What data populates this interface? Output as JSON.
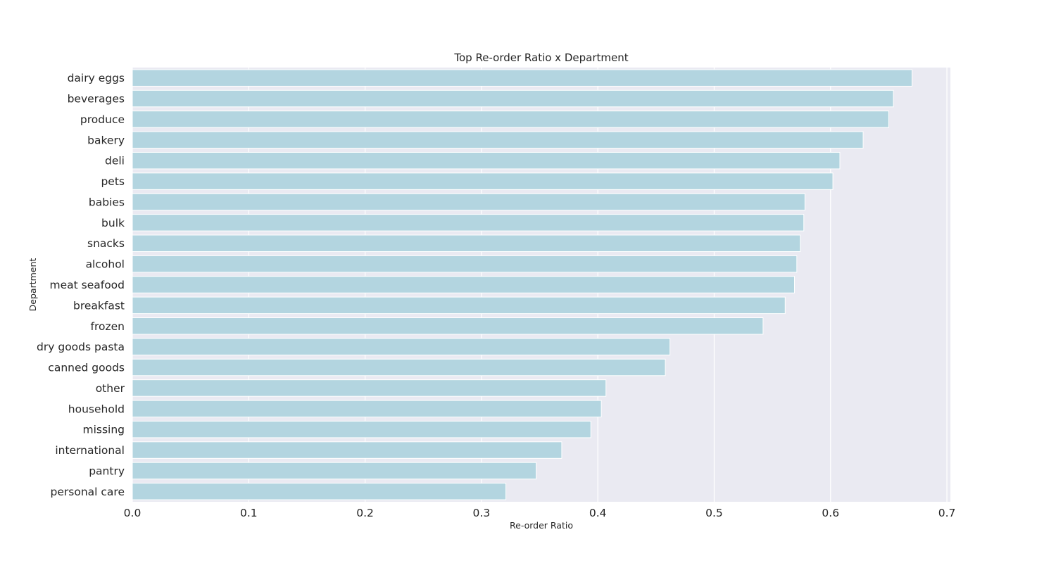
{
  "chart_data": {
    "type": "bar",
    "orientation": "horizontal",
    "title": "Top Re-order Ratio x Department",
    "xlabel": "Re-order Ratio",
    "ylabel": "Department",
    "xlim": [
      0,
      0.703
    ],
    "xticks": [
      0.0,
      0.1,
      0.2,
      0.3,
      0.4,
      0.5,
      0.6,
      0.7
    ],
    "xtick_labels": [
      "0.0",
      "0.1",
      "0.2",
      "0.3",
      "0.4",
      "0.5",
      "0.6",
      "0.7"
    ],
    "grid": true,
    "categories": [
      "dairy eggs",
      "beverages",
      "produce",
      "bakery",
      "deli",
      "pets",
      "babies",
      "bulk",
      "snacks",
      "alcohol",
      "meat seafood",
      "breakfast",
      "frozen",
      "dry goods pasta",
      "canned goods",
      "other",
      "household",
      "missing",
      "international",
      "pantry",
      "personal care"
    ],
    "values": [
      0.67,
      0.654,
      0.65,
      0.628,
      0.608,
      0.602,
      0.578,
      0.577,
      0.574,
      0.571,
      0.569,
      0.561,
      0.542,
      0.462,
      0.458,
      0.407,
      0.403,
      0.394,
      0.369,
      0.347,
      0.321
    ],
    "colors": {
      "bar": "#b3d5e0",
      "bar_edge": "#ffffff",
      "background": "#eaeaf2",
      "grid": "#ffffff",
      "text": "#262626"
    }
  }
}
